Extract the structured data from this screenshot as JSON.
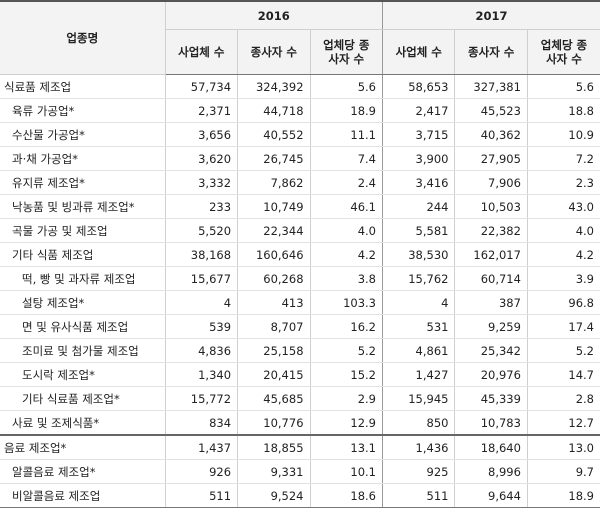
{
  "table": {
    "header": {
      "industry_label": "업종명",
      "years": [
        "2016",
        "2017"
      ],
      "columns": [
        "사업체 수",
        "종사자 수",
        "업체당 종\n사자 수",
        "사업체 수",
        "종사자 수",
        "업체당 종\n사자 수"
      ]
    },
    "rows": [
      {
        "name": "식료품 제조업",
        "indent": 0,
        "values": [
          "57,734",
          "324,392",
          "5.6",
          "58,653",
          "327,381",
          "5.6"
        ]
      },
      {
        "name": "육류 가공업*",
        "indent": 1,
        "values": [
          "2,371",
          "44,718",
          "18.9",
          "2,417",
          "45,523",
          "18.8"
        ]
      },
      {
        "name": "수산물 가공업*",
        "indent": 1,
        "values": [
          "3,656",
          "40,552",
          "11.1",
          "3,715",
          "40,362",
          "10.9"
        ]
      },
      {
        "name": "과·채 가공업*",
        "indent": 1,
        "values": [
          "3,620",
          "26,745",
          "7.4",
          "3,900",
          "27,905",
          "7.2"
        ]
      },
      {
        "name": "유지류 제조업*",
        "indent": 1,
        "values": [
          "3,332",
          "7,862",
          "2.4",
          "3,416",
          "7,906",
          "2.3"
        ]
      },
      {
        "name": "낙농품 및 빙과류 제조업*",
        "indent": 1,
        "values": [
          "233",
          "10,749",
          "46.1",
          "244",
          "10,503",
          "43.0"
        ]
      },
      {
        "name": "곡물 가공 및 제조업",
        "indent": 1,
        "values": [
          "5,520",
          "22,344",
          "4.0",
          "5,581",
          "22,382",
          "4.0"
        ]
      },
      {
        "name": "기타 식품 제조업",
        "indent": 1,
        "values": [
          "38,168",
          "160,646",
          "4.2",
          "38,530",
          "162,017",
          "4.2"
        ]
      },
      {
        "name": "떡, 빵 및 과자류 제조업",
        "indent": 2,
        "values": [
          "15,677",
          "60,268",
          "3.8",
          "15,762",
          "60,714",
          "3.9"
        ]
      },
      {
        "name": "설탕 제조업*",
        "indent": 2,
        "values": [
          "4",
          "413",
          "103.3",
          "4",
          "387",
          "96.8"
        ]
      },
      {
        "name": "면 및 유사식품 제조업",
        "indent": 2,
        "values": [
          "539",
          "8,707",
          "16.2",
          "531",
          "9,259",
          "17.4"
        ]
      },
      {
        "name": "조미료 및 첨가물 제조업",
        "indent": 2,
        "values": [
          "4,836",
          "25,158",
          "5.2",
          "4,861",
          "25,342",
          "5.2"
        ]
      },
      {
        "name": "도시락 제조업*",
        "indent": 2,
        "values": [
          "1,340",
          "20,415",
          "15.2",
          "1,427",
          "20,976",
          "14.7"
        ]
      },
      {
        "name": "기타 식료품 제조업*",
        "indent": 2,
        "values": [
          "15,772",
          "45,685",
          "2.9",
          "15,945",
          "45,339",
          "2.8"
        ]
      },
      {
        "name": "사료 및 조제식품*",
        "indent": 1,
        "values": [
          "834",
          "10,776",
          "12.9",
          "850",
          "10,783",
          "12.7"
        ]
      },
      {
        "name": "음료 제조업*",
        "indent": 0,
        "separator": true,
        "values": [
          "1,437",
          "18,855",
          "13.1",
          "1,436",
          "18,640",
          "13.0"
        ]
      },
      {
        "name": "알콜음료 제조업*",
        "indent": 1,
        "values": [
          "926",
          "9,331",
          "10.1",
          "925",
          "8,996",
          "9.7"
        ]
      },
      {
        "name": "비알콜음료 제조업",
        "indent": 1,
        "values": [
          "511",
          "9,524",
          "18.6",
          "511",
          "9,644",
          "18.9"
        ]
      }
    ]
  }
}
